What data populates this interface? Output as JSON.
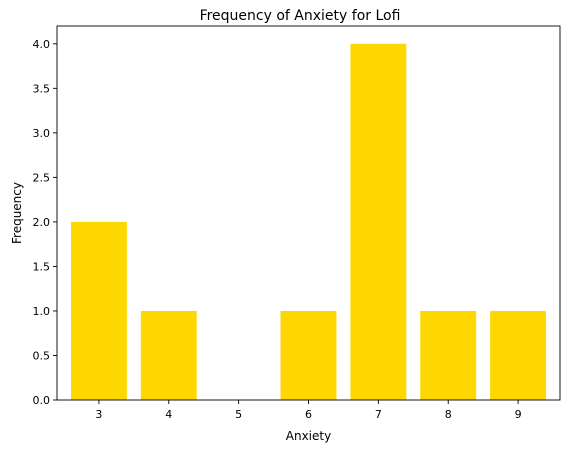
{
  "chart_data": {
    "type": "bar",
    "title": "Frequency of Anxiety for Lofi",
    "xlabel": "Anxiety",
    "ylabel": "Frequency",
    "x": [
      3,
      4,
      6,
      7,
      8,
      9
    ],
    "values": [
      2,
      1,
      1,
      4,
      1,
      1
    ],
    "xticks": [
      "3",
      "4",
      "5",
      "6",
      "7",
      "8",
      "9"
    ],
    "yticks": [
      "0.0",
      "0.5",
      "1.0",
      "1.5",
      "2.0",
      "2.5",
      "3.0",
      "3.5",
      "4.0"
    ],
    "xlim": [
      2.4,
      9.6
    ],
    "ylim": [
      0,
      4.2
    ],
    "bar_color": "#FFD700",
    "grid": false,
    "legend": "none"
  }
}
